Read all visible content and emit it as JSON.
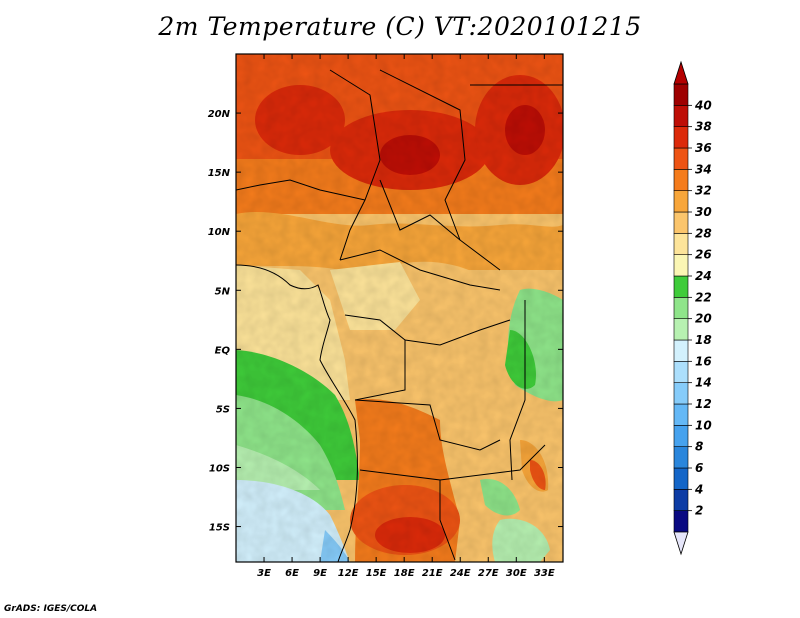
{
  "title": "2m Temperature (C) VT:2020101215",
  "credit": "GrADS: IGES/COLA",
  "map": {
    "lon_ticks": [
      "3E",
      "6E",
      "9E",
      "12E",
      "15E",
      "18E",
      "21E",
      "24E",
      "27E",
      "30E",
      "33E"
    ],
    "lat_ticks": [
      "20N",
      "15N",
      "10N",
      "5N",
      "EQ",
      "5S",
      "10S",
      "15S"
    ],
    "lon_range": [
      0,
      35
    ],
    "lat_range": [
      -18,
      25
    ]
  },
  "colorbar": {
    "labels": [
      "2",
      "4",
      "6",
      "8",
      "10",
      "12",
      "14",
      "16",
      "18",
      "20",
      "22",
      "24",
      "26",
      "28",
      "30",
      "32",
      "34",
      "36",
      "38",
      "40"
    ],
    "colors": [
      "#0a0a82",
      "#0d3ca5",
      "#1466c8",
      "#2a86dc",
      "#46a2ee",
      "#64b8f6",
      "#86ccfa",
      "#acdffc",
      "#d3f1fd",
      "#b7f1b1",
      "#8fe58a",
      "#3fcc3a",
      "#fbf6b4",
      "#fde49a",
      "#fbc56c",
      "#f8a63a",
      "#f57c1c",
      "#ee5414",
      "#dc2a0a",
      "#be0e06",
      "#9e0000"
    ],
    "low_cap_color": "#e6e6fa",
    "high_cap_color": "#b40000"
  }
}
